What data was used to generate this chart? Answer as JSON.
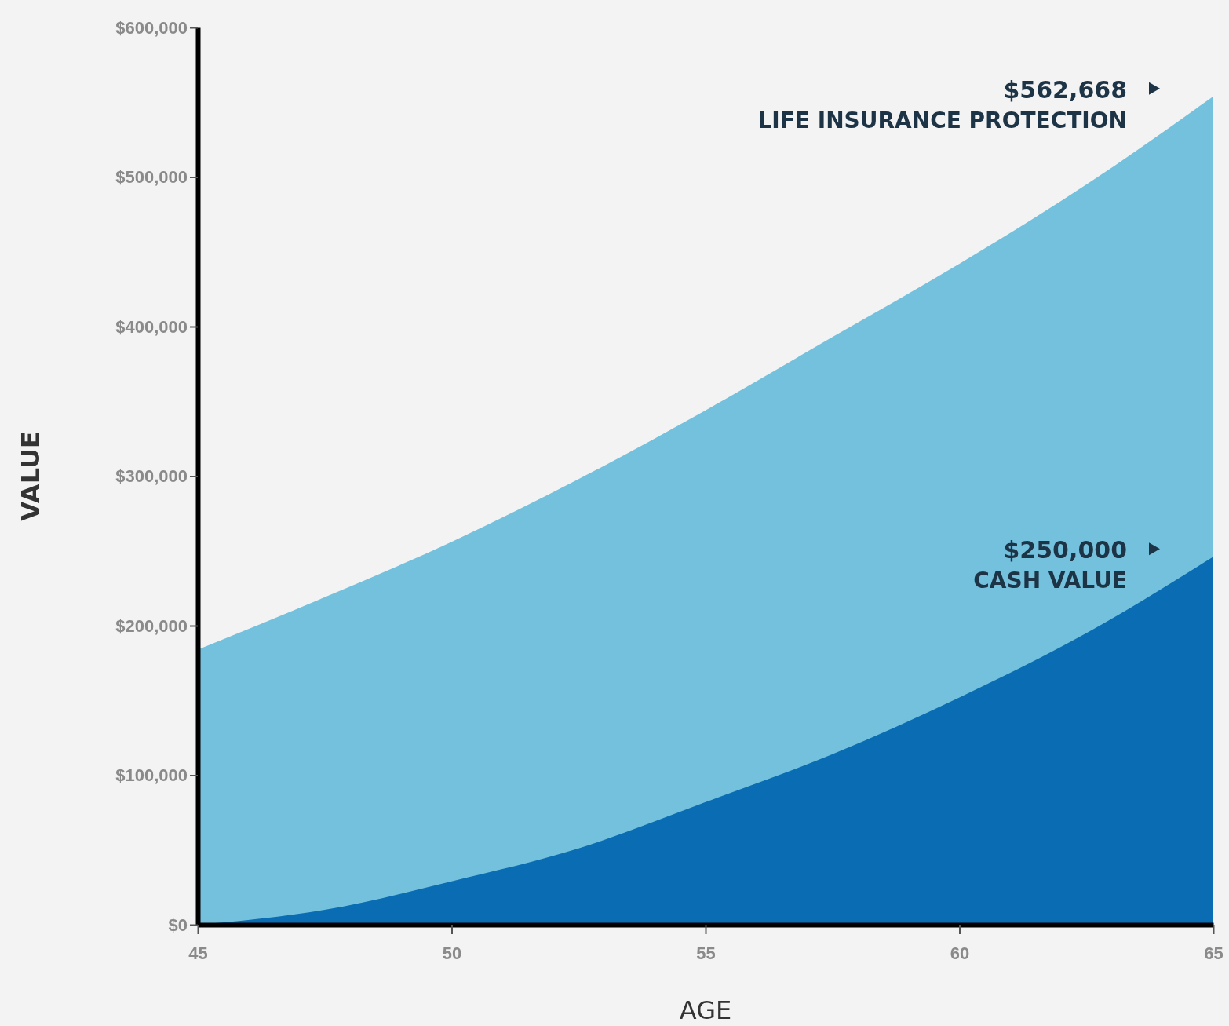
{
  "chart_data": {
    "type": "area",
    "xlabel": "AGE",
    "ylabel": "VALUE",
    "x": [
      45,
      47.5,
      50,
      52.5,
      55,
      57.5,
      60,
      62.5,
      65
    ],
    "series": [
      {
        "name": "LIFE INSURANCE PROTECTION",
        "color": "#74c1de",
        "values": [
          184000,
          219000,
          256000,
          298000,
          344000,
          393000,
          442000,
          495000,
          554000
        ]
      },
      {
        "name": "CASH VALUE",
        "color": "#0a6cb2",
        "values": [
          0,
          10000,
          29000,
          51000,
          82000,
          114000,
          152000,
          195000,
          246000
        ]
      }
    ],
    "xlim": [
      45,
      65
    ],
    "xticks": [
      45,
      50,
      55,
      60,
      65
    ],
    "ylim": [
      0,
      600000
    ],
    "yticks": [
      {
        "value": 0,
        "label": "$0"
      },
      {
        "value": 100000,
        "label": "$100,000"
      },
      {
        "value": 200000,
        "label": "$200,000"
      },
      {
        "value": 300000,
        "label": "$300,000"
      },
      {
        "value": 400000,
        "label": "$400,000"
      },
      {
        "value": 500000,
        "label": "$500,000"
      },
      {
        "value": 600000,
        "label": "$600,000"
      }
    ],
    "annotations": [
      "$562,668",
      "$250,000"
    ]
  }
}
